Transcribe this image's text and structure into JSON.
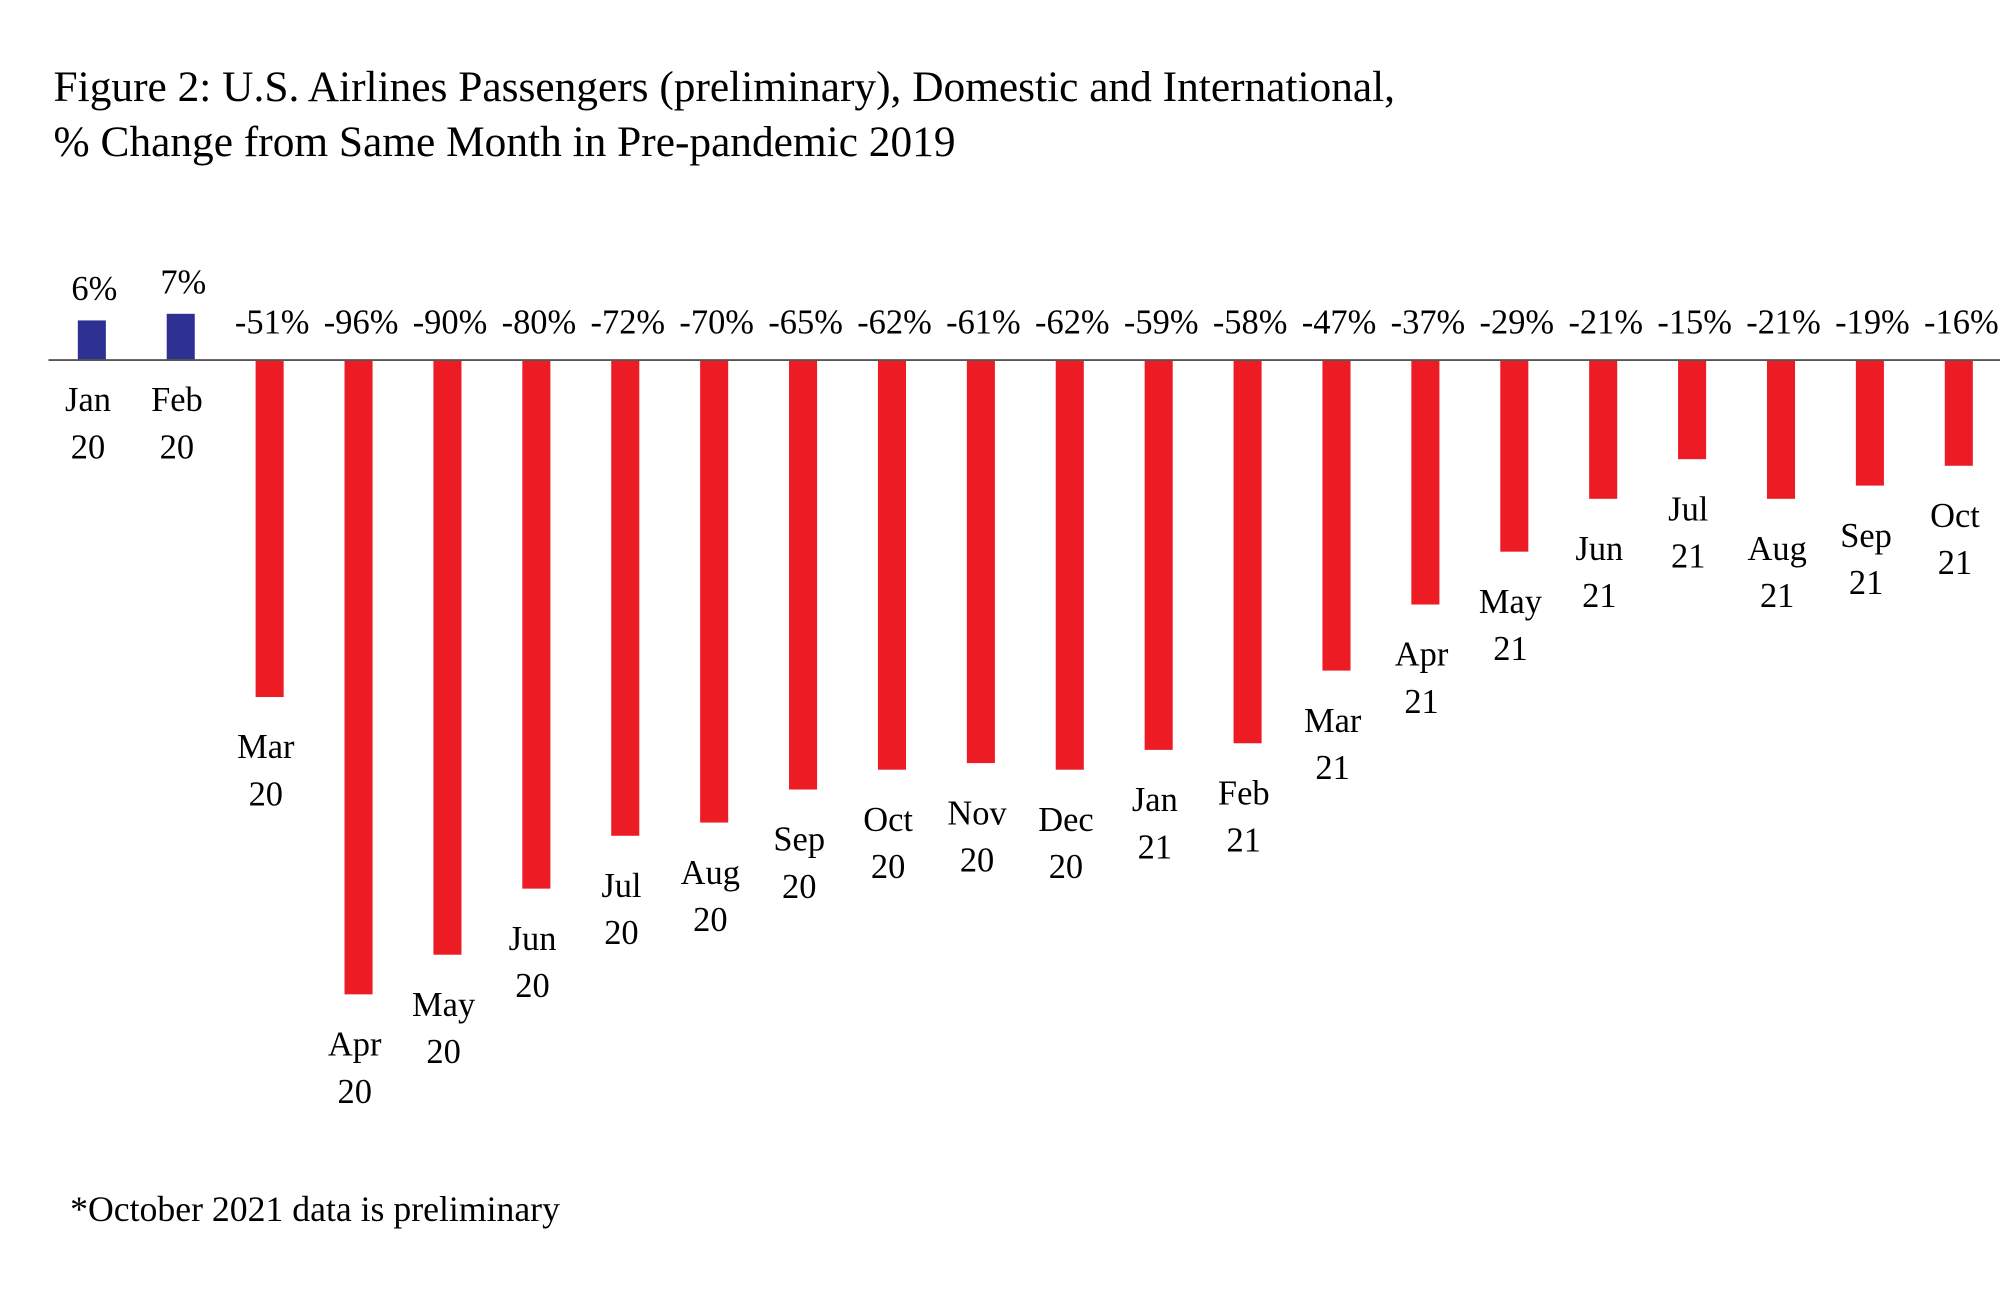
{
  "chart_data": {
    "type": "bar",
    "title": [
      "Figure 2: U.S. Airlines Passengers (preliminary), Domestic and International,",
      "% Change from Same Month in Pre-pandemic 2019"
    ],
    "categories": [
      [
        "Jan",
        "20"
      ],
      [
        "Feb",
        "20"
      ],
      [
        "Mar",
        "20"
      ],
      [
        "Apr",
        "20"
      ],
      [
        "May",
        "20"
      ],
      [
        "Jun",
        "20"
      ],
      [
        "Jul",
        "20"
      ],
      [
        "Aug",
        "20"
      ],
      [
        "Sep",
        "20"
      ],
      [
        "Oct",
        "20"
      ],
      [
        "Nov",
        "20"
      ],
      [
        "Dec",
        "20"
      ],
      [
        "Jan",
        "21"
      ],
      [
        "Feb",
        "21"
      ],
      [
        "Mar",
        "21"
      ],
      [
        "Apr",
        "21"
      ],
      [
        "May",
        "21"
      ],
      [
        "Jun",
        "21"
      ],
      [
        "Jul",
        "21"
      ],
      [
        "Aug",
        "21"
      ],
      [
        "Sep",
        "21"
      ],
      [
        "Oct",
        "21"
      ]
    ],
    "values": [
      6,
      7,
      -51,
      -96,
      -90,
      -80,
      -72,
      -70,
      -65,
      -62,
      -61,
      -62,
      -59,
      -58,
      -47,
      -37,
      -29,
      -21,
      -15,
      -21,
      -19,
      -16
    ],
    "data_labels": [
      "6%",
      "7%",
      "-51%",
      "-96%",
      "-90%",
      "-80%",
      "-72%",
      "-70%",
      "-65%",
      "-62%",
      "-61%",
      "-62%",
      "-59%",
      "-58%",
      "-47%",
      "-37%",
      "-29%",
      "-21%",
      "-15%",
      "-21%",
      "-19%",
      "-16%"
    ],
    "unit": "%",
    "ylim": [
      -96,
      7
    ],
    "grid": false,
    "legend": "none",
    "colors": {
      "positive": "#2e3192",
      "negative": "#ed1c24",
      "axis": "#555555"
    },
    "footnote": "*October 2021 data is preliminary"
  }
}
